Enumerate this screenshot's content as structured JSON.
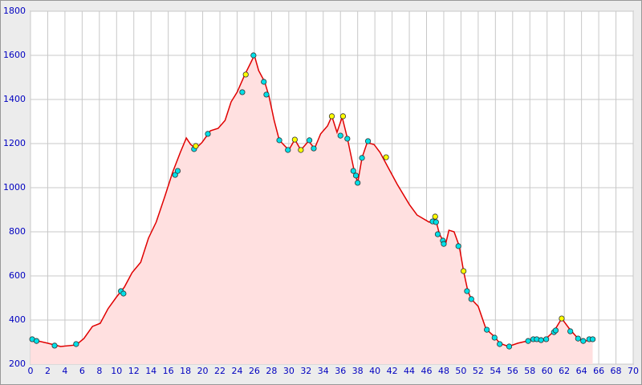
{
  "chart_data": {
    "type": "line",
    "xlim": [
      0,
      70
    ],
    "ylim": [
      200,
      1800
    ],
    "xticks": [
      0,
      2,
      4,
      6,
      8,
      10,
      12,
      14,
      16,
      18,
      20,
      22,
      24,
      26,
      28,
      30,
      32,
      34,
      36,
      38,
      40,
      42,
      44,
      46,
      48,
      50,
      52,
      54,
      56,
      58,
      60,
      62,
      64,
      66,
      68,
      70
    ],
    "yticks": [
      200,
      400,
      600,
      800,
      1000,
      1200,
      1400,
      1600,
      1800
    ],
    "grid": true,
    "series": [
      {
        "color": "#e00000",
        "fill": "#ffe0e0",
        "marker": false,
        "x": [
          0,
          2,
          3.5,
          5.3,
          6.2,
          7.2,
          8.1,
          9,
          10,
          10.9,
          11.8,
          12.8,
          13.7,
          14.6,
          15.6,
          16.5,
          17.4,
          18.1,
          18.6,
          19.2,
          19.9,
          20.9,
          21.8,
          22.6,
          23.3,
          24,
          24.9,
          25.5,
          26,
          26.5,
          27.2,
          27.7,
          28.3,
          28.9,
          30,
          30.7,
          31.4,
          32.3,
          33,
          33.7,
          34.5,
          35,
          35.6,
          36.2,
          36.8,
          37.6,
          38,
          38.5,
          39.1,
          39.9,
          40.6,
          41.7,
          42.6,
          44,
          44.9,
          46.3,
          47.1,
          47.5,
          48.2,
          48.6,
          49.2,
          49.8,
          50.3,
          50.8,
          51.2,
          52,
          52.9,
          53.9,
          54.5,
          55.5,
          56.6,
          57.7,
          58.7,
          59.8,
          60.8,
          61.7,
          62.6,
          63.6,
          64.5,
          65.3
        ],
        "values": [
          313,
          295,
          280,
          287,
          316,
          371,
          385,
          451,
          505,
          549,
          615,
          662,
          771,
          844,
          960,
          1069,
          1160,
          1225,
          1196,
          1178,
          1204,
          1258,
          1269,
          1305,
          1389,
          1433,
          1513,
          1560,
          1600,
          1531,
          1480,
          1415,
          1305,
          1215,
          1171,
          1218,
          1171,
          1211,
          1178,
          1244,
          1280,
          1324,
          1251,
          1320,
          1225,
          1076,
          1022,
          1135,
          1204,
          1196,
          1160,
          1080,
          1015,
          924,
          876,
          844,
          851,
          789,
          742,
          807,
          800,
          735,
          622,
          531,
          495,
          462,
          360,
          324,
          295,
          280,
          295,
          305,
          313,
          313,
          349,
          407,
          360,
          316,
          305,
          313
        ]
      },
      {
        "color": "#00e0e8",
        "marker": true,
        "x": [
          0.2,
          0.7,
          2.8,
          5.3,
          10.5,
          10.8,
          16.8,
          17.1,
          19.0,
          20.6,
          24.6,
          25.9,
          27.1,
          27.4,
          28.9,
          29.9,
          32.4,
          32.9,
          36.0,
          36.8,
          37.5,
          37.8,
          38.0,
          38.5,
          39.2,
          46.7,
          47.1,
          47.3,
          47.9,
          48.0,
          49.7,
          50.7,
          51.2,
          53.0,
          53.9,
          54.5,
          55.6,
          57.8,
          58.4,
          58.8,
          59.3,
          59.9,
          60.8,
          61.0,
          62.7,
          63.6,
          64.2,
          64.9,
          65.3
        ],
        "values": [
          313,
          305,
          284,
          291,
          531,
          520,
          1058,
          1076,
          1175,
          1244,
          1433,
          1600,
          1480,
          1422,
          1215,
          1171,
          1215,
          1178,
          1236,
          1222,
          1076,
          1055,
          1022,
          1135,
          1211,
          847,
          844,
          789,
          760,
          745,
          735,
          531,
          495,
          356,
          320,
          291,
          280,
          305,
          313,
          313,
          309,
          313,
          345,
          353,
          349,
          316,
          305,
          313,
          313
        ]
      },
      {
        "color": "#ffff00",
        "marker": true,
        "x": [
          19.2,
          25.0,
          30.7,
          31.4,
          35.0,
          36.3,
          41.3,
          47.0,
          50.3,
          61.7
        ],
        "values": [
          1189,
          1513,
          1218,
          1171,
          1324,
          1324,
          1138,
          869,
          622,
          407
        ]
      }
    ]
  }
}
